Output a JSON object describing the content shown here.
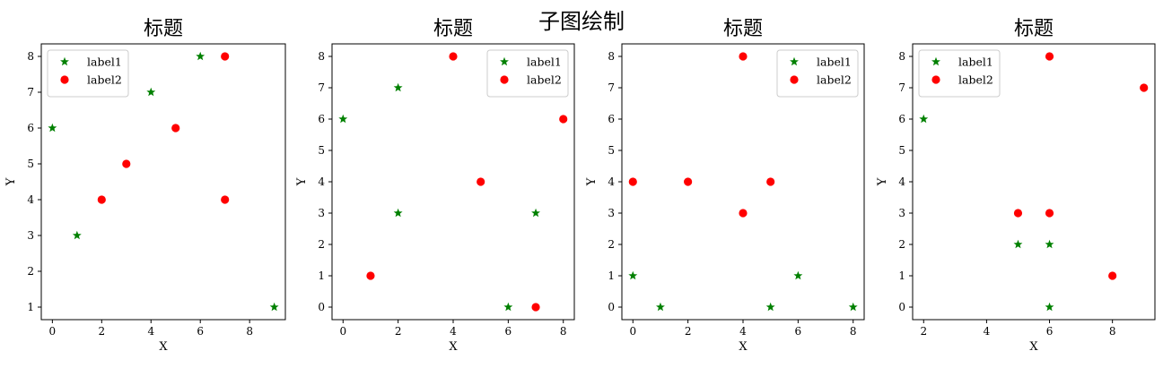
{
  "figure": {
    "title": "子图绘制"
  },
  "colors": {
    "label1": "#008000",
    "label2": "#ff0000",
    "axes": "#000000"
  },
  "chart_data": [
    {
      "type": "scatter",
      "title": "标题",
      "xlabel": "X",
      "ylabel": "Y",
      "xlim": [
        -0.45,
        9.45
      ],
      "ylim": [
        0.65,
        8.35
      ],
      "xticks": [
        0,
        2,
        4,
        6,
        8
      ],
      "yticks": [
        1,
        2,
        3,
        4,
        5,
        6,
        7,
        8
      ],
      "legend": "upper left",
      "series": [
        {
          "name": "label1",
          "marker": "star",
          "x": [
            0,
            1,
            4,
            6,
            9
          ],
          "y": [
            6,
            3,
            7,
            8,
            1
          ]
        },
        {
          "name": "label2",
          "marker": "circle",
          "x": [
            2,
            3,
            5,
            7,
            7
          ],
          "y": [
            4,
            5,
            6,
            8,
            4
          ]
        }
      ]
    },
    {
      "type": "scatter",
      "title": "标题",
      "xlabel": "X",
      "ylabel": "Y",
      "xlim": [
        -0.4,
        8.4
      ],
      "ylim": [
        -0.4,
        8.4
      ],
      "xticks": [
        0,
        2,
        4,
        6,
        8
      ],
      "yticks": [
        0,
        1,
        2,
        3,
        4,
        5,
        6,
        7,
        8
      ],
      "legend": "upper right",
      "series": [
        {
          "name": "label1",
          "marker": "star",
          "x": [
            0,
            2,
            2,
            6,
            7
          ],
          "y": [
            6,
            7,
            3,
            0,
            3
          ]
        },
        {
          "name": "label2",
          "marker": "circle",
          "x": [
            1,
            4,
            5,
            7,
            8
          ],
          "y": [
            1,
            8,
            4,
            0,
            6
          ]
        }
      ]
    },
    {
      "type": "scatter",
      "title": "标题",
      "xlabel": "X",
      "ylabel": "Y",
      "xlim": [
        -0.4,
        8.4
      ],
      "ylim": [
        -0.4,
        8.4
      ],
      "xticks": [
        0,
        2,
        4,
        6,
        8
      ],
      "yticks": [
        0,
        1,
        2,
        3,
        4,
        5,
        6,
        7,
        8
      ],
      "legend": "upper right",
      "series": [
        {
          "name": "label1",
          "marker": "star",
          "x": [
            0,
            1,
            5,
            6,
            8
          ],
          "y": [
            1,
            0,
            0,
            1,
            0
          ]
        },
        {
          "name": "label2",
          "marker": "circle",
          "x": [
            0,
            2,
            4,
            4,
            5
          ],
          "y": [
            4,
            4,
            8,
            3,
            4
          ]
        }
      ]
    },
    {
      "type": "scatter",
      "title": "标题",
      "xlabel": "X",
      "ylabel": "Y",
      "xlim": [
        1.65,
        9.35
      ],
      "ylim": [
        -0.4,
        8.4
      ],
      "xticks": [
        2,
        4,
        6,
        8
      ],
      "yticks": [
        0,
        1,
        2,
        3,
        4,
        5,
        6,
        7,
        8
      ],
      "legend": "upper left",
      "series": [
        {
          "name": "label1",
          "marker": "star",
          "x": [
            2,
            5,
            6,
            6
          ],
          "y": [
            6,
            2,
            2,
            0
          ]
        },
        {
          "name": "label2",
          "marker": "circle",
          "x": [
            5,
            6,
            6,
            8,
            9
          ],
          "y": [
            3,
            3,
            8,
            1,
            7
          ]
        }
      ]
    }
  ]
}
